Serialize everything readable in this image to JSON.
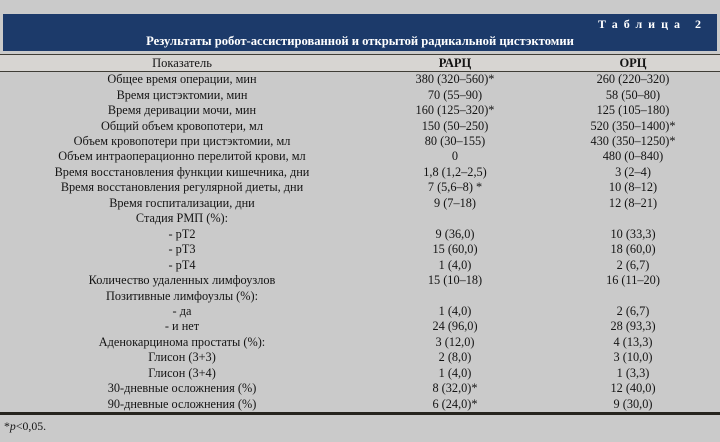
{
  "table": {
    "tag": "Таблица 2",
    "title": "Результаты робот-ассистированной и открытой радикальной цистэктомии",
    "columns": [
      "Показатель",
      "РАРЦ",
      "ОРЦ"
    ],
    "rows": [
      {
        "label": "Общее время операции, мин",
        "rarc": "380 (320–560)*",
        "orc": "260 (220–320)"
      },
      {
        "label": "Время цистэктомии, мин",
        "rarc": "70 (55–90)",
        "orc": "58 (50–80)"
      },
      {
        "label": "Время деривации мочи, мин",
        "rarc": "160 (125–320)*",
        "orc": "125 (105–180)"
      },
      {
        "label": "Общий объем кровопотери, мл",
        "rarc": "150 (50–250)",
        "orc": "520 (350–1400)*"
      },
      {
        "label": "Объем кровопотери при цистэктомии, мл",
        "rarc": "80 (30–155)",
        "orc": "430 (350–1250)*"
      },
      {
        "label": "Объем интраоперационно перелитой крови, мл",
        "rarc": "0",
        "orc": "480 (0–840)"
      },
      {
        "label": "Время восстановления функции кишечника, дни",
        "rarc": "1,8 (1,2–2,5)",
        "orc": "3 (2–4)"
      },
      {
        "label": "Время восстановления регулярной диеты, дни",
        "rarc": "7 (5,6–8) *",
        "orc": "10 (8–12)"
      },
      {
        "label": "Время госпитализации, дни",
        "rarc": "9 (7–18)",
        "orc": "12 (8–21)"
      },
      {
        "label": "Стадия РМП (%):",
        "rarc": "",
        "orc": ""
      },
      {
        "label": "- pT2",
        "rarc": "9 (36,0)",
        "orc": "10 (33,3)"
      },
      {
        "label": "- pT3",
        "rarc": "15 (60,0)",
        "orc": "18 (60,0)"
      },
      {
        "label": "- pT4",
        "rarc": "1 (4,0)",
        "orc": "2 (6,7)"
      },
      {
        "label": "Количество удаленных лимфоузлов",
        "rarc": "15 (10–18)",
        "orc": "16 (11–20)"
      },
      {
        "label": "Позитивные лимфоузлы (%):",
        "rarc": "",
        "orc": ""
      },
      {
        "label": "- да",
        "rarc": "1 (4,0)",
        "orc": "2 (6,7)"
      },
      {
        "label": "- и нет",
        "rarc": "24 (96,0)",
        "orc": "28 (93,3)"
      },
      {
        "label": "Аденокарцинома простаты (%):",
        "rarc": "3 (12,0)",
        "orc": "4 (13,3)"
      },
      {
        "label": "Глисон (3+3)",
        "rarc": "2 (8,0)",
        "orc": "3 (10,0)"
      },
      {
        "label": "Глисон (3+4)",
        "rarc": "1 (4,0)",
        "orc": "1 (3,3)"
      },
      {
        "label": "30-дневные осложнения (%)",
        "rarc": "8 (32,0)*",
        "orc": "12 (40,0)"
      },
      {
        "label": "90-дневные осложнения (%)",
        "rarc": "6 (24,0)*",
        "orc": "9 (30,0)"
      }
    ],
    "footnote_star": "*",
    "footnote_p": "p",
    "footnote_rest": "<0,05."
  },
  "colors": {
    "band_navy": "#1c3a6a",
    "page_background": "#cacaca",
    "header_row_background": "#d7d5d2",
    "thin_rule": "#3f3d36",
    "thick_rule": "#26241e",
    "band_text": "#ffffff",
    "body_text": "#141414"
  }
}
